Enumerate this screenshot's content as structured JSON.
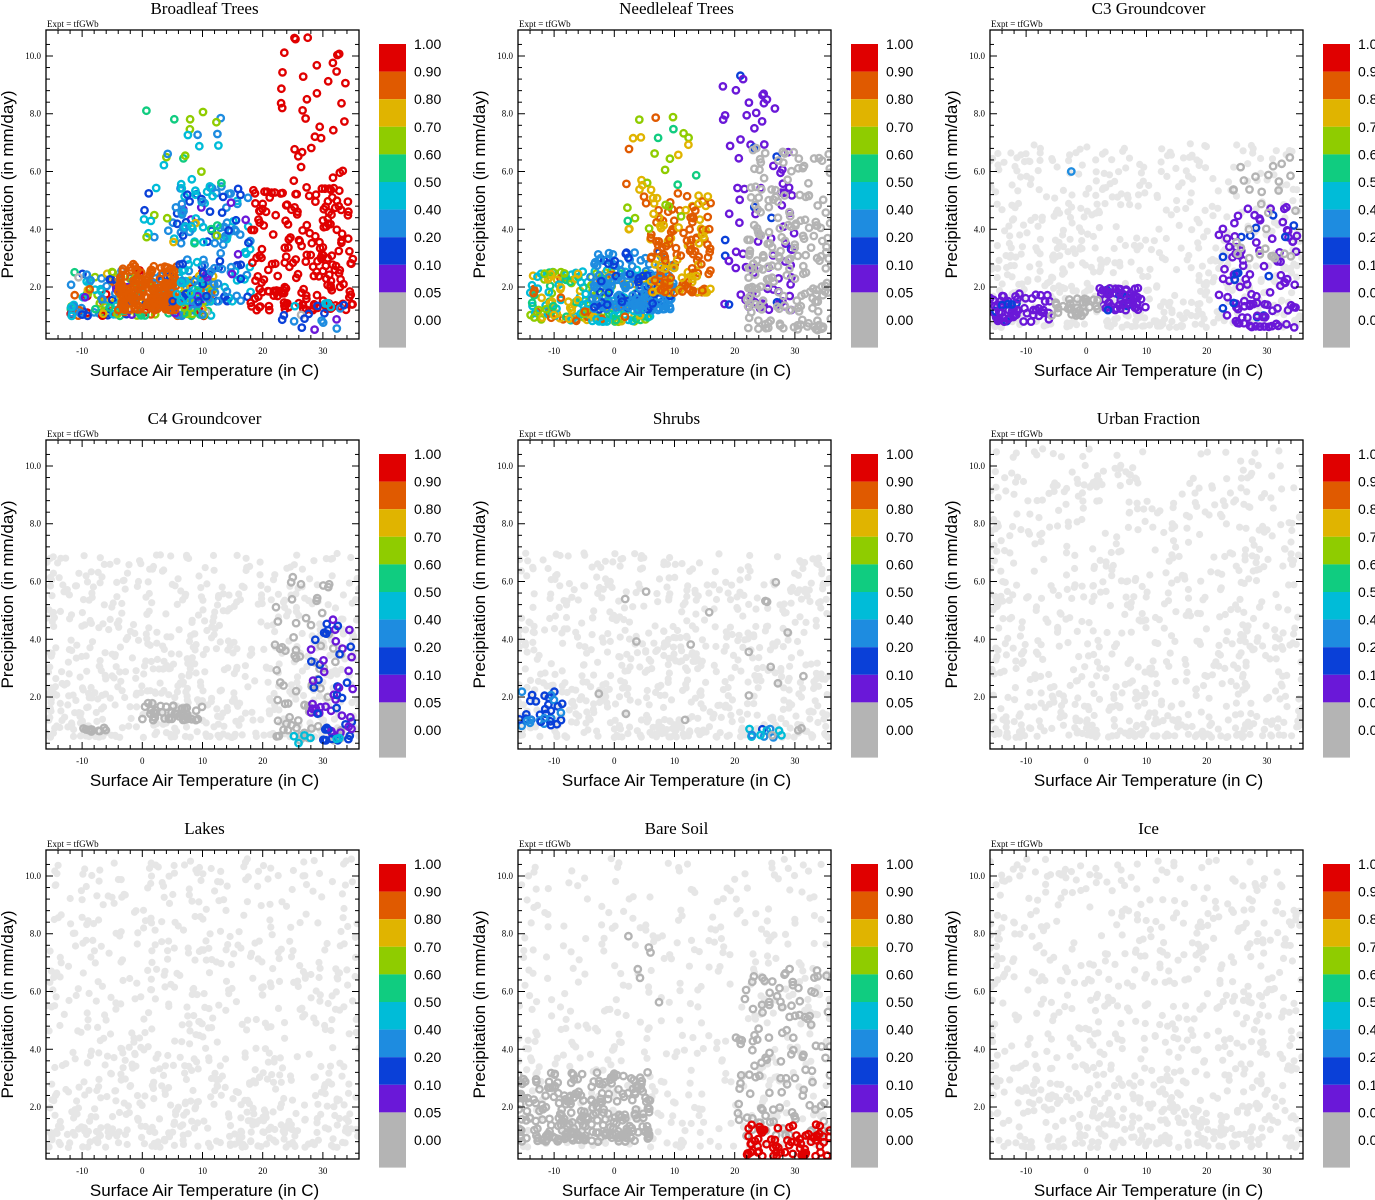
{
  "figure": {
    "expt_label": "Expt = tfGWb",
    "xlabel": "Surface Air Temperature (in C)",
    "ylabel": "Precipitation (in mm/day)",
    "xticks": [
      "-10",
      "0",
      "10",
      "20",
      "30"
    ],
    "xtick_values": [
      -10,
      0,
      10,
      20,
      30
    ],
    "yticks": [
      "2.0",
      "4.0",
      "6.0",
      "8.0",
      "10.0"
    ],
    "ytick_values": [
      2,
      4,
      6,
      8,
      10
    ],
    "xlim": [
      -16,
      36
    ],
    "ylim": [
      0.2,
      10.9
    ],
    "colorbar": {
      "labels": [
        "1.00",
        "0.90",
        "0.80",
        "0.70",
        "0.60",
        "0.50",
        "0.40",
        "0.20",
        "0.10",
        "0.05",
        "0.00"
      ],
      "colors": [
        "#e00000",
        "#e05a00",
        "#e0b400",
        "#8fcc00",
        "#10cc80",
        "#00bcd8",
        "#1e8ce0",
        "#0a40d8",
        "#6a18d8",
        "#b4b4b4",
        "#b4b4b4"
      ]
    },
    "background_point_color": "#e6e6e6",
    "zero_point_color": "#b4b4b4"
  },
  "chart_data": [
    {
      "type": "scatter",
      "title": "Broadleaf Trees",
      "clusters": [
        {
          "x": [
            -12,
            12
          ],
          "y": [
            1.0,
            2.6
          ],
          "v": [
            0.0,
            0.9
          ],
          "count": 260
        },
        {
          "x": [
            -4,
            6
          ],
          "y": [
            1.2,
            2.8
          ],
          "v": [
            0.8,
            0.85
          ],
          "count": 160
        },
        {
          "x": [
            5,
            18
          ],
          "y": [
            1.5,
            5.5
          ],
          "v": [
            0.05,
            0.4
          ],
          "count": 150
        },
        {
          "x": [
            0,
            14
          ],
          "y": [
            3.5,
            8.2
          ],
          "v": [
            0.1,
            0.7
          ],
          "count": 50
        },
        {
          "x": [
            18,
            35
          ],
          "y": [
            1.2,
            5.5
          ],
          "v": [
            0.88,
            0.95
          ],
          "count": 200
        },
        {
          "x": [
            22,
            34
          ],
          "y": [
            5.5,
            10.8
          ],
          "v": [
            0.88,
            0.95
          ],
          "count": 35
        },
        {
          "x": [
            22,
            34
          ],
          "y": [
            0.5,
            1.5
          ],
          "v": [
            0.0,
            0.4
          ],
          "count": 20
        }
      ]
    },
    {
      "type": "scatter",
      "title": "Needleleaf Trees",
      "clusters": [
        {
          "x": [
            -14,
            6
          ],
          "y": [
            0.8,
            2.6
          ],
          "v": [
            0.3,
            0.8
          ],
          "count": 220
        },
        {
          "x": [
            -4,
            10
          ],
          "y": [
            1.2,
            3.2
          ],
          "v": [
            0.1,
            0.3
          ],
          "count": 180
        },
        {
          "x": [
            6,
            16
          ],
          "y": [
            1.8,
            5.2
          ],
          "v": [
            0.7,
            0.85
          ],
          "count": 150
        },
        {
          "x": [
            2,
            14
          ],
          "y": [
            4.0,
            8.2
          ],
          "v": [
            0.5,
            0.85
          ],
          "count": 40
        },
        {
          "x": [
            18,
            30
          ],
          "y": [
            1.2,
            9.5
          ],
          "v": [
            0.04,
            0.08
          ],
          "count": 90
        },
        {
          "x": [
            22,
            36
          ],
          "y": [
            0.5,
            7.0
          ],
          "v": [
            0.0,
            0.01
          ],
          "count": 200
        }
      ]
    },
    {
      "type": "scatter",
      "title": "C3 Groundcover",
      "clusters": [
        {
          "x": [
            -16,
            36
          ],
          "y": [
            0.6,
            7.0
          ],
          "v": [
            -1,
            -1
          ],
          "count": 600
        },
        {
          "x": [
            -16,
            -6
          ],
          "y": [
            0.8,
            1.8
          ],
          "v": [
            0.04,
            0.08
          ],
          "count": 60
        },
        {
          "x": [
            2,
            10
          ],
          "y": [
            1.2,
            2.0
          ],
          "v": [
            0.04,
            0.08
          ],
          "count": 60
        },
        {
          "x": [
            -6,
            2
          ],
          "y": [
            1.0,
            1.6
          ],
          "v": [
            0.0,
            0.01
          ],
          "count": 30
        },
        {
          "x": [
            22,
            35
          ],
          "y": [
            0.6,
            4.8
          ],
          "v": [
            0.04,
            0.08
          ],
          "count": 110
        },
        {
          "x": [
            24,
            35
          ],
          "y": [
            3.0,
            6.5
          ],
          "v": [
            0.0,
            0.01
          ],
          "count": 30
        },
        {
          "x": [
            -2.5,
            -2.5
          ],
          "y": [
            6.0,
            6.0
          ],
          "v": [
            0.15,
            0.15
          ],
          "count": 1
        }
      ]
    },
    {
      "type": "scatter",
      "title": "C4 Groundcover",
      "clusters": [
        {
          "x": [
            -16,
            36
          ],
          "y": [
            0.6,
            7.0
          ],
          "v": [
            -1,
            -1
          ],
          "count": 650
        },
        {
          "x": [
            -10,
            -6
          ],
          "y": [
            0.8,
            1.0
          ],
          "v": [
            0.0,
            0.01
          ],
          "count": 10
        },
        {
          "x": [
            0,
            10
          ],
          "y": [
            1.2,
            1.8
          ],
          "v": [
            0.0,
            0.01
          ],
          "count": 40
        },
        {
          "x": [
            22,
            34
          ],
          "y": [
            0.5,
            6.2
          ],
          "v": [
            0.0,
            0.01
          ],
          "count": 70
        },
        {
          "x": [
            28,
            35
          ],
          "y": [
            0.5,
            4.7
          ],
          "v": [
            0.04,
            0.1
          ],
          "count": 60
        },
        {
          "x": [
            24,
            34
          ],
          "y": [
            0.4,
            1.0
          ],
          "v": [
            0.3,
            0.45
          ],
          "count": 6
        }
      ]
    },
    {
      "type": "scatter",
      "title": "Shrubs",
      "clusters": [
        {
          "x": [
            -16,
            36
          ],
          "y": [
            0.6,
            7.0
          ],
          "v": [
            -1,
            -1
          ],
          "count": 650
        },
        {
          "x": [
            -16,
            -8
          ],
          "y": [
            1.0,
            2.2
          ],
          "v": [
            0.08,
            0.2
          ],
          "count": 35
        },
        {
          "x": [
            22,
            28
          ],
          "y": [
            0.6,
            0.9
          ],
          "v": [
            0.05,
            0.45
          ],
          "count": 12
        },
        {
          "x": [
            -3,
            32
          ],
          "y": [
            0.6,
            6.0
          ],
          "v": [
            0.0,
            0.01
          ],
          "count": 20
        }
      ]
    },
    {
      "type": "scatter",
      "title": "Urban Fraction",
      "clusters": [
        {
          "x": [
            -16,
            36
          ],
          "y": [
            0.6,
            10.6
          ],
          "v": [
            -1,
            -1
          ],
          "count": 750
        }
      ]
    },
    {
      "type": "scatter",
      "title": "Lakes",
      "clusters": [
        {
          "x": [
            -16,
            36
          ],
          "y": [
            0.6,
            10.6
          ],
          "v": [
            -1,
            -1
          ],
          "count": 750
        }
      ]
    },
    {
      "type": "scatter",
      "title": "Bare Soil",
      "clusters": [
        {
          "x": [
            -16,
            36
          ],
          "y": [
            0.6,
            10.6
          ],
          "v": [
            -1,
            -1
          ],
          "count": 450
        },
        {
          "x": [
            -16,
            6
          ],
          "y": [
            0.8,
            3.2
          ],
          "v": [
            0.0,
            0.01
          ],
          "count": 260
        },
        {
          "x": [
            20,
            36
          ],
          "y": [
            1.0,
            6.8
          ],
          "v": [
            0.0,
            0.01
          ],
          "count": 120
        },
        {
          "x": [
            22,
            36
          ],
          "y": [
            0.3,
            1.4
          ],
          "v": [
            0.9,
            0.95
          ],
          "count": 70
        },
        {
          "x": [
            2,
            8
          ],
          "y": [
            5.5,
            8.2
          ],
          "v": [
            0.0,
            0.01
          ],
          "count": 6
        }
      ]
    },
    {
      "type": "scatter",
      "title": "Ice",
      "clusters": [
        {
          "x": [
            -16,
            36
          ],
          "y": [
            0.6,
            10.6
          ],
          "v": [
            -1,
            -1
          ],
          "count": 750
        }
      ]
    }
  ]
}
